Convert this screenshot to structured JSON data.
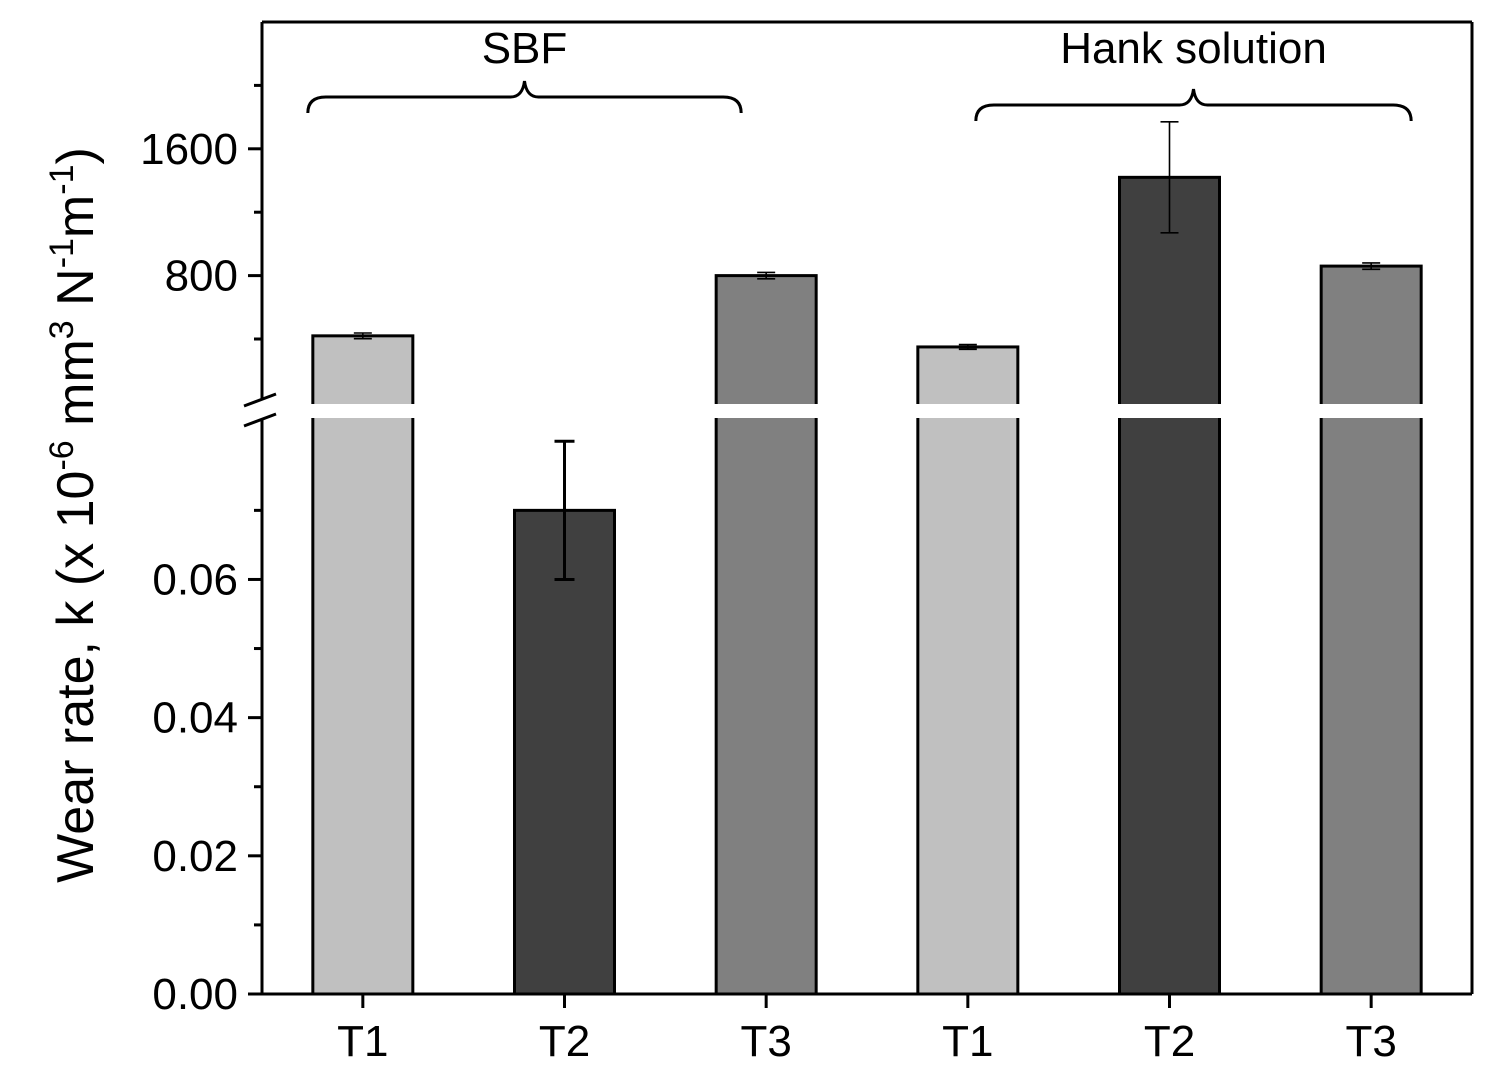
{
  "chart_data": {
    "type": "bar",
    "ylabel": {
      "main": "Wear rate, k (x 10",
      "exp1": "-6",
      "mid1": "  mm",
      "exp2": "3",
      "mid2": " N",
      "exp3": "-1",
      "mid3": "m",
      "exp4": "-1",
      "end": ")"
    },
    "groups": [
      "SBF",
      "Hank solution"
    ],
    "categories": [
      "T1",
      "T2",
      "T3",
      "T1",
      "T2",
      "T3"
    ],
    "bar_colors": [
      "#c0c0c0",
      "#404040",
      "#808080",
      "#c0c0c0",
      "#404040",
      "#808080"
    ],
    "axis_break": true,
    "lower_segment": {
      "ylim": [
        0,
        0.0825
      ],
      "ticks": [
        "0.00",
        "0.02",
        "0.04",
        "0.06"
      ],
      "tick_values": [
        0,
        0.02,
        0.04,
        0.06
      ]
    },
    "upper_segment": {
      "ylim": [
        -10,
        2400
      ],
      "ticks": [
        "800",
        "1600"
      ],
      "tick_values": [
        800,
        1600
      ]
    },
    "series": [
      {
        "segment": [
          "upper",
          "lower",
          "upper",
          "upper",
          "upper",
          "upper"
        ],
        "values": [
          420,
          0.07,
          800,
          350,
          1420,
          860
        ],
        "errors": [
          18,
          0.01,
          20,
          15,
          350,
          20
        ]
      }
    ]
  }
}
